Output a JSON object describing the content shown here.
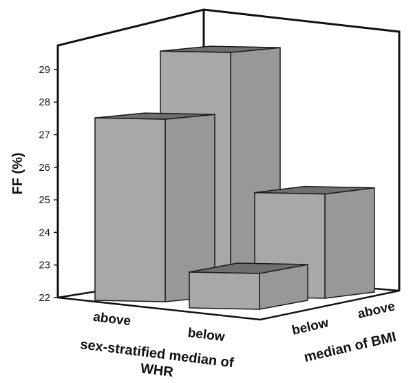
{
  "chart_data": {
    "type": "bar",
    "title": "",
    "ylabel": "FF (%)",
    "xlabel": "sex-stratified median of WHR",
    "xlabel_line1": "sex-stratified median of",
    "xlabel_line2": "WHR",
    "zlabel": "median of BMI",
    "ylim": [
      22,
      29.5
    ],
    "yticks": [
      "22",
      "23",
      "24",
      "25",
      "26",
      "27",
      "28",
      "29"
    ],
    "x_categories": [
      "above",
      "below"
    ],
    "z_categories": [
      "below",
      "above"
    ],
    "series": [
      {
        "name": "below",
        "values": [
          27.6,
          23.1
        ]
      },
      {
        "name": "above",
        "values": [
          29.1,
          25.2
        ]
      }
    ],
    "grid": false,
    "legend": "none"
  },
  "colors": {
    "bar_front": "#a8a8a8",
    "bar_side": "#989898",
    "bar_top": "#6f6f6f",
    "frame": "#111111"
  }
}
